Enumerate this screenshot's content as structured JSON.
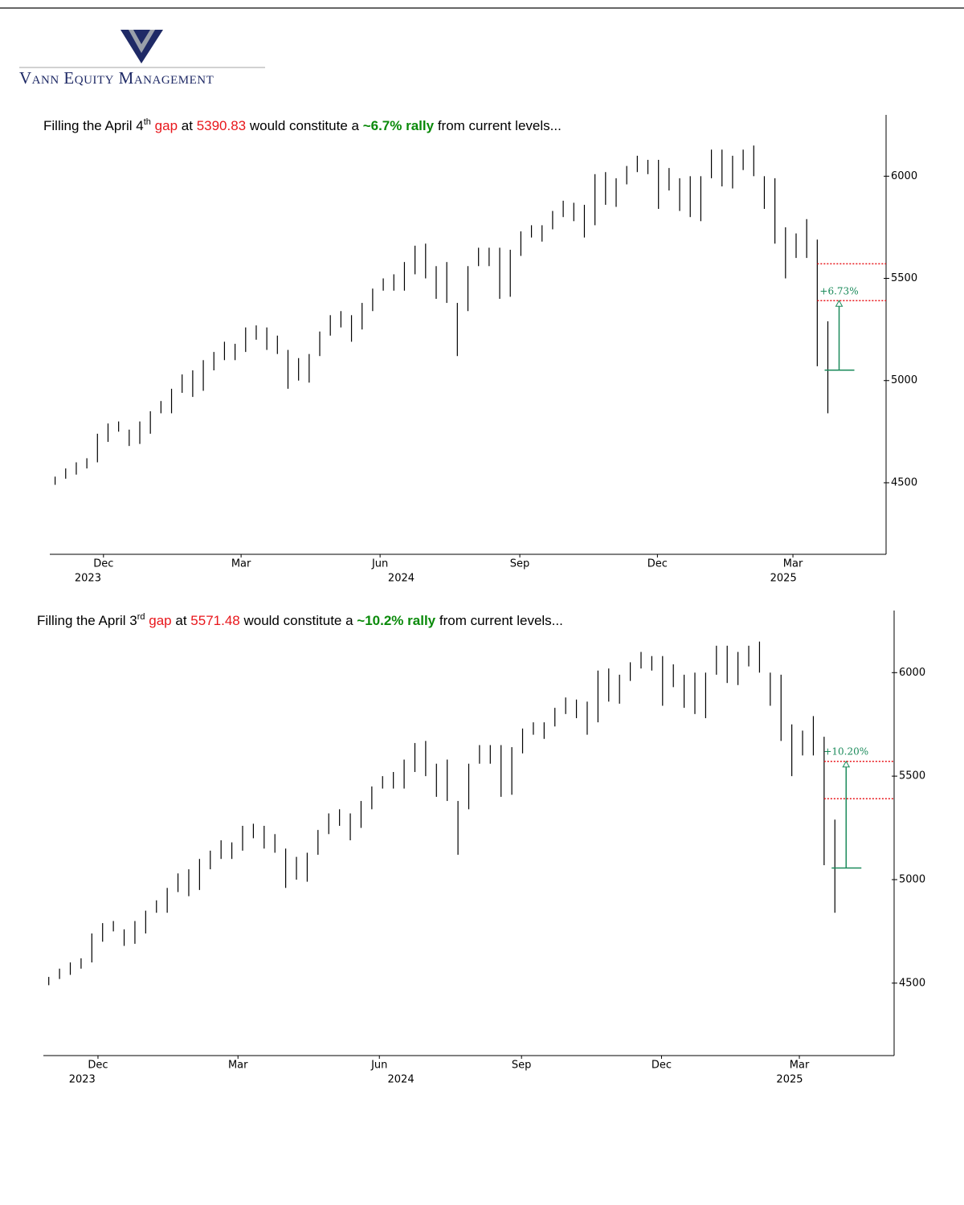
{
  "header": {
    "company": "Vann Equity Management"
  },
  "charts": [
    {
      "type": "hlc",
      "title": {
        "pre": "Filling the April 4",
        "sup": "th",
        "gap": "gap",
        "at": "at",
        "level": 5390.83,
        "mid": "would constitute a",
        "rally": "~6.7% rally",
        "post": "from current levels..."
      },
      "color": "#000000",
      "ylim": [
        4150,
        6300
      ],
      "yticks": [
        4500,
        5000,
        5500,
        6000
      ],
      "xlim": [
        -0.5,
        78.5
      ],
      "xticks": [
        {
          "value": 4.57,
          "label": "Dec"
        },
        {
          "value": 17.57,
          "label": "Mar"
        },
        {
          "value": 30.7,
          "label": "Jun"
        },
        {
          "value": 43.9,
          "label": "Sep"
        },
        {
          "value": 56.9,
          "label": "Dec"
        },
        {
          "value": 69.7,
          "label": "Mar"
        }
      ],
      "xyears": [
        {
          "value": 3.1,
          "label": "2023"
        },
        {
          "value": 32.7,
          "label": "2024"
        },
        {
          "value": 68.8,
          "label": "2025"
        }
      ],
      "highs": [
        4530,
        4570,
        4600,
        4620,
        4740,
        4790,
        4800,
        4760,
        4800,
        4850,
        4900,
        4960,
        5030,
        5050,
        5100,
        5140,
        5190,
        5180,
        5260,
        5270,
        5260,
        5220,
        5150,
        5110,
        5130,
        5240,
        5320,
        5340,
        5320,
        5380,
        5450,
        5500,
        5520,
        5580,
        5660,
        5670,
        5560,
        5580,
        5380,
        5560,
        5650,
        5650,
        5650,
        5640,
        5730,
        5760,
        5760,
        5830,
        5880,
        5870,
        5860,
        6010,
        6020,
        5990,
        6050,
        6100,
        6080,
        6080,
        6040,
        5990,
        6000,
        6000,
        6130,
        6130,
        6100,
        6130,
        6150,
        6000,
        5990,
        5750,
        5720,
        5790,
        5690,
        5290
      ],
      "lows": [
        4490,
        4520,
        4540,
        4570,
        4600,
        4700,
        4750,
        4680,
        4690,
        4740,
        4840,
        4840,
        4940,
        4920,
        4950,
        5050,
        5100,
        5100,
        5140,
        5200,
        5150,
        5130,
        4960,
        5000,
        4990,
        5120,
        5220,
        5260,
        5190,
        5250,
        5340,
        5440,
        5440,
        5440,
        5520,
        5500,
        5400,
        5380,
        5120,
        5340,
        5560,
        5560,
        5400,
        5410,
        5610,
        5700,
        5680,
        5740,
        5800,
        5780,
        5700,
        5760,
        5860,
        5850,
        5960,
        6020,
        6010,
        5840,
        5930,
        5830,
        5800,
        5780,
        5990,
        5950,
        5940,
        6030,
        6000,
        5840,
        5670,
        5500,
        5600,
        5600,
        5070,
        4840
      ],
      "gap_lines": [
        5571.48,
        5390.83
      ],
      "rally": {
        "from": 5051,
        "to": 5390.83,
        "label": "+6.73%"
      }
    },
    {
      "type": "hlc",
      "title": {
        "pre": "Filling the April 3",
        "sup": "rd",
        "gap": "gap",
        "at": "at",
        "level": 5571.48,
        "mid": "would constitute a",
        "rally": "~10.2% rally",
        "post": "from current levels..."
      },
      "color": "#000000",
      "ylim": [
        4150,
        6300
      ],
      "yticks": [
        4500,
        5000,
        5500,
        6000
      ],
      "xlim": [
        -0.5,
        78.5
      ],
      "xticks": [
        {
          "value": 4.57,
          "label": "Dec"
        },
        {
          "value": 17.57,
          "label": "Mar"
        },
        {
          "value": 30.7,
          "label": "Jun"
        },
        {
          "value": 43.9,
          "label": "Sep"
        },
        {
          "value": 56.9,
          "label": "Dec"
        },
        {
          "value": 69.7,
          "label": "Mar"
        }
      ],
      "xyears": [
        {
          "value": 3.1,
          "label": "2023"
        },
        {
          "value": 32.7,
          "label": "2024"
        },
        {
          "value": 68.8,
          "label": "2025"
        }
      ],
      "highs": [
        4530,
        4570,
        4600,
        4620,
        4740,
        4790,
        4800,
        4760,
        4800,
        4850,
        4900,
        4960,
        5030,
        5050,
        5100,
        5140,
        5190,
        5180,
        5260,
        5270,
        5260,
        5220,
        5150,
        5110,
        5130,
        5240,
        5320,
        5340,
        5320,
        5380,
        5450,
        5500,
        5520,
        5580,
        5660,
        5670,
        5560,
        5580,
        5380,
        5560,
        5650,
        5650,
        5650,
        5640,
        5730,
        5760,
        5760,
        5830,
        5880,
        5870,
        5860,
        6010,
        6020,
        5990,
        6050,
        6100,
        6080,
        6080,
        6040,
        5990,
        6000,
        6000,
        6130,
        6130,
        6100,
        6130,
        6150,
        6000,
        5990,
        5750,
        5720,
        5790,
        5690,
        5290
      ],
      "lows": [
        4490,
        4520,
        4540,
        4570,
        4600,
        4700,
        4750,
        4680,
        4690,
        4740,
        4840,
        4840,
        4940,
        4920,
        4950,
        5050,
        5100,
        5100,
        5140,
        5200,
        5150,
        5130,
        4960,
        5000,
        4990,
        5120,
        5220,
        5260,
        5190,
        5250,
        5340,
        5440,
        5440,
        5440,
        5520,
        5500,
        5400,
        5380,
        5120,
        5340,
        5560,
        5560,
        5400,
        5410,
        5610,
        5700,
        5680,
        5740,
        5800,
        5780,
        5700,
        5760,
        5860,
        5850,
        5960,
        6020,
        6010,
        5840,
        5930,
        5830,
        5800,
        5780,
        5990,
        5950,
        5940,
        6030,
        6000,
        5840,
        5670,
        5500,
        5600,
        5600,
        5070,
        4840
      ],
      "gap_lines": [
        5571.48,
        5390.83
      ],
      "rally": {
        "from": 5056,
        "to": 5571.48,
        "label": "+10.20%"
      }
    }
  ]
}
